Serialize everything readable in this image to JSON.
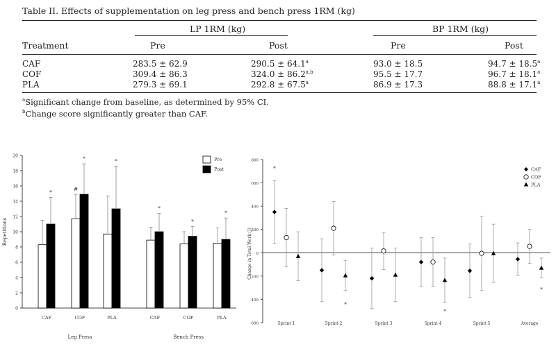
{
  "table": {
    "caption": "Table II. Effects of supplementation on leg press and bench press 1RM (kg)",
    "group_headers": [
      "LP 1RM (kg)",
      "BP 1RM (kg)"
    ],
    "col_headers": [
      "Treatment",
      "Pre",
      "Post",
      "Pre",
      "Post"
    ],
    "rows": [
      {
        "treatment": "CAF",
        "lp_pre": "283.5 ± 62.9",
        "lp_post": "290.5 ± 64.1",
        "lp_post_sup": "a",
        "bp_pre": "93.0 ± 18.5",
        "bp_post": "94.7 ± 18.5",
        "bp_post_sup": "a"
      },
      {
        "treatment": "COF",
        "lp_pre": "309.4 ± 86.3",
        "lp_post": "324.0 ± 86.2",
        "lp_post_sup": "a,b",
        "bp_pre": "95.5 ± 17.7",
        "bp_post": "96.7 ± 18.1",
        "bp_post_sup": "a"
      },
      {
        "treatment": "PLA",
        "lp_pre": "279.3 ± 69.1",
        "lp_post": "292.8 ± 67.5",
        "lp_post_sup": "a",
        "bp_pre": "86.9 ± 17.3",
        "bp_post": "88.8 ± 17.1",
        "bp_post_sup": "a"
      }
    ],
    "footnotes": [
      {
        "mark": "a",
        "text": "Significant change from baseline, as determined by 95% CI."
      },
      {
        "mark": "b",
        "text": "Change score significantly greater than CAF."
      }
    ]
  },
  "chart_data": [
    {
      "type": "bar",
      "ylabel": "Repetitions",
      "ylim": [
        0,
        20
      ],
      "yticks": [
        "0",
        "2",
        "4",
        "6",
        "8",
        "10",
        "12",
        "14",
        "16",
        "18",
        "20"
      ],
      "groups": [
        "Leg Press",
        "Bench Press"
      ],
      "categories": [
        "CAF",
        "COF",
        "PLA",
        "CAF",
        "COF",
        "PLA"
      ],
      "legend": [
        "Pre",
        "Post"
      ],
      "legend_position": "top-right",
      "series": [
        {
          "name": "Pre",
          "color": "#ffffff",
          "values": [
            8.3,
            11.7,
            9.7,
            8.9,
            8.4,
            8.5
          ],
          "errors": [
            3.2,
            3.2,
            5.0,
            1.7,
            1.6,
            2.0
          ]
        },
        {
          "name": "Post",
          "color": "#000000",
          "values": [
            11.0,
            14.9,
            13.0,
            10.0,
            9.4,
            9.0
          ],
          "errors": [
            3.5,
            4.0,
            5.6,
            2.4,
            1.3,
            2.8
          ]
        }
      ],
      "annotations": [
        {
          "category": 0,
          "marker": "*"
        },
        {
          "category": 1,
          "marker": "#"
        },
        {
          "category": 1,
          "marker": "*"
        },
        {
          "category": 2,
          "marker": "*"
        },
        {
          "category": 3,
          "marker": "*"
        },
        {
          "category": 4,
          "marker": "*"
        },
        {
          "category": 5,
          "marker": "*"
        }
      ]
    },
    {
      "type": "scatter",
      "ylabel": "Change in Total Work (J)",
      "ylim": [
        -600,
        800
      ],
      "yticks": [
        "-600",
        "-400",
        "-200",
        "0",
        "200",
        "400",
        "600",
        "800"
      ],
      "categories": [
        "Sprint 1",
        "Sprint 2",
        "Sprint 3",
        "Sprint 4",
        "Sprint 5",
        "Average"
      ],
      "legend": [
        "CAF",
        "COF",
        "PLA"
      ],
      "legend_position": "top-right",
      "series": [
        {
          "name": "CAF",
          "marker": "diamond",
          "values": [
            350,
            -150,
            -220,
            -80,
            -155,
            -55
          ],
          "errors": [
            270,
            270,
            260,
            210,
            230,
            140
          ]
        },
        {
          "name": "COF",
          "marker": "circle",
          "values": [
            130,
            210,
            15,
            -80,
            -5,
            55
          ],
          "errors": [
            250,
            230,
            160,
            210,
            320,
            145
          ]
        },
        {
          "name": "PLA",
          "marker": "triangle",
          "values": [
            -30,
            -195,
            -190,
            -235,
            -5,
            -130
          ],
          "errors": [
            210,
            130,
            230,
            190,
            250,
            85
          ]
        }
      ],
      "annotations": [
        {
          "category": 0,
          "marker": "*",
          "value": 730
        },
        {
          "category": 1,
          "marker": "*",
          "value": -440
        },
        {
          "category": 3,
          "marker": "*",
          "value": -500
        },
        {
          "category": 5,
          "marker": "*",
          "value": -310
        }
      ]
    }
  ]
}
